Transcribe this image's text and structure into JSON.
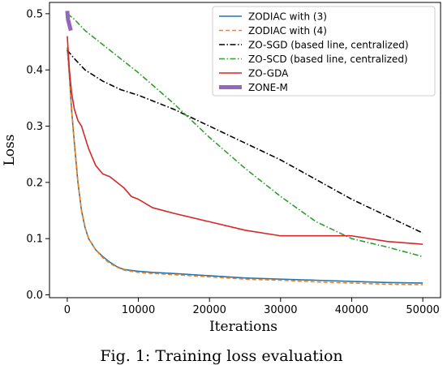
{
  "caption": "Fig. 1: Training loss evaluation",
  "chart_data": {
    "type": "line",
    "title": "",
    "xlabel": "Iterations",
    "ylabel": "Loss",
    "xlim": [
      -2500,
      52500
    ],
    "ylim": [
      -0.005,
      0.52
    ],
    "xticks": [
      0,
      10000,
      20000,
      30000,
      40000,
      50000
    ],
    "yticks": [
      0.0,
      0.1,
      0.2,
      0.3,
      0.4,
      0.5
    ],
    "xtick_labels": [
      "0",
      "10000",
      "20000",
      "30000",
      "40000",
      "50000"
    ],
    "ytick_labels": [
      "0.0",
      "0.1",
      "0.2",
      "0.3",
      "0.4",
      "0.5"
    ],
    "grid": false,
    "legend_position": "top-right",
    "series": [
      {
        "name": "ZODIAC with (3)",
        "color": "#1f77b4",
        "style": "solid",
        "x": [
          0,
          300,
          600,
          1000,
          1500,
          2000,
          2500,
          3000,
          4000,
          5000,
          6000,
          7000,
          8000,
          10000,
          12000,
          15000,
          20000,
          25000,
          30000,
          35000,
          40000,
          45000,
          50000
        ],
        "y": [
          0.44,
          0.39,
          0.33,
          0.27,
          0.2,
          0.15,
          0.12,
          0.1,
          0.08,
          0.068,
          0.058,
          0.05,
          0.045,
          0.042,
          0.04,
          0.038,
          0.034,
          0.03,
          0.028,
          0.026,
          0.024,
          0.022,
          0.021
        ]
      },
      {
        "name": "ZODIAC with (4)",
        "color": "#ff7f0e",
        "style": "dashed",
        "x": [
          0,
          300,
          600,
          1000,
          1500,
          2000,
          2500,
          3000,
          4000,
          5000,
          6000,
          7000,
          8000,
          10000,
          12000,
          15000,
          20000,
          25000,
          30000,
          35000,
          40000,
          45000,
          50000
        ],
        "y": [
          0.44,
          0.39,
          0.33,
          0.27,
          0.2,
          0.15,
          0.12,
          0.1,
          0.08,
          0.066,
          0.056,
          0.049,
          0.044,
          0.04,
          0.038,
          0.036,
          0.032,
          0.028,
          0.026,
          0.023,
          0.021,
          0.019,
          0.018
        ]
      },
      {
        "name": "ZO-SGD (based line, centralized)",
        "color": "#000000",
        "style": "dashdot",
        "x": [
          0,
          1000,
          2500,
          5000,
          7500,
          10000,
          15000,
          20000,
          25000,
          30000,
          35000,
          40000,
          45000,
          50000
        ],
        "y": [
          0.435,
          0.42,
          0.4,
          0.38,
          0.365,
          0.355,
          0.33,
          0.3,
          0.27,
          0.24,
          0.205,
          0.17,
          0.14,
          0.11
        ]
      },
      {
        "name": "ZO-SCD (based line, centralized)",
        "color": "#2ca02c",
        "style": "dashdot",
        "x": [
          0,
          1000,
          2500,
          5000,
          7500,
          10000,
          15000,
          20000,
          25000,
          30000,
          35000,
          40000,
          45000,
          50000
        ],
        "y": [
          0.5,
          0.49,
          0.47,
          0.445,
          0.42,
          0.395,
          0.34,
          0.28,
          0.225,
          0.175,
          0.13,
          0.1,
          0.085,
          0.068
        ]
      },
      {
        "name": "ZO-GDA",
        "color": "#d62728",
        "style": "solid",
        "x": [
          0,
          300,
          600,
          1000,
          1500,
          2000,
          3000,
          4000,
          5000,
          6000,
          7000,
          8000,
          9000,
          10000,
          12000,
          15000,
          20000,
          25000,
          30000,
          35000,
          40000,
          45000,
          50000
        ],
        "y": [
          0.46,
          0.4,
          0.36,
          0.33,
          0.31,
          0.3,
          0.26,
          0.23,
          0.215,
          0.21,
          0.2,
          0.19,
          0.175,
          0.17,
          0.155,
          0.145,
          0.13,
          0.115,
          0.105,
          0.105,
          0.105,
          0.095,
          0.09
        ]
      },
      {
        "name": "ZONE-M",
        "color": "#9467bd",
        "style": "thick",
        "x": [
          0,
          100,
          200,
          300,
          400,
          500
        ],
        "y": [
          0.505,
          0.49,
          0.485,
          0.48,
          0.475,
          0.47
        ]
      }
    ]
  }
}
